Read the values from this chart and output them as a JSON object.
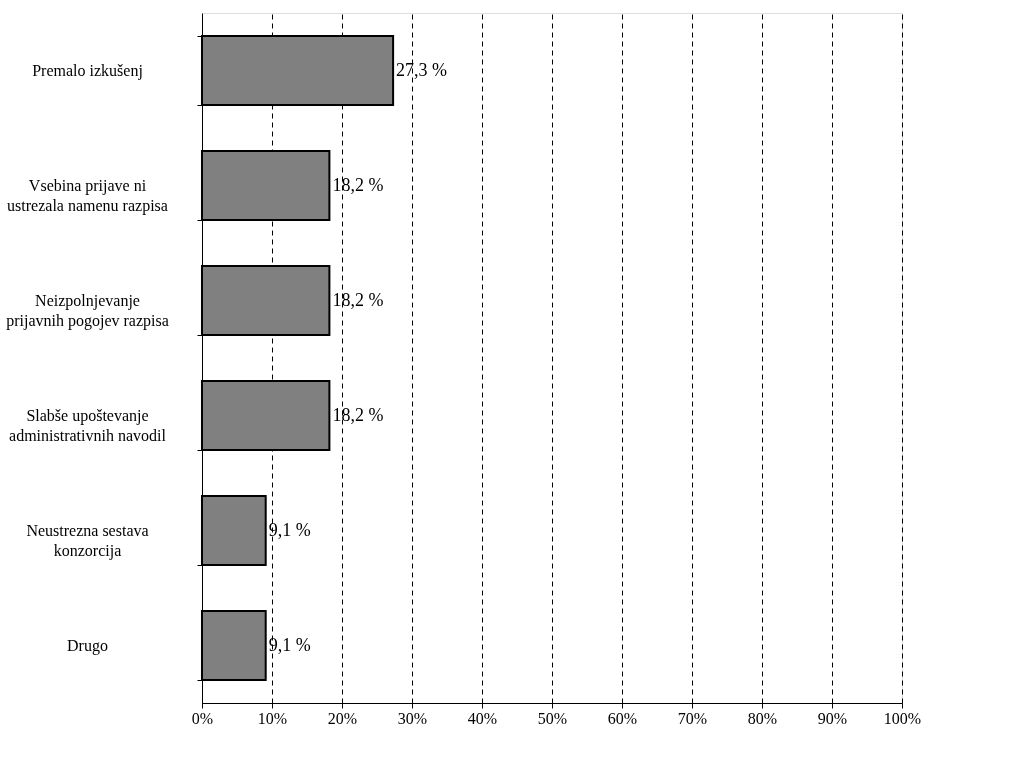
{
  "chart_data": {
    "type": "bar",
    "orientation": "horizontal",
    "categories": [
      "Premalo izkušenj",
      "Vsebina prijave ni\nustrezala namenu razpisa",
      "Neizpolnjevanje\nprijavnih pogojev razpisa",
      "Slabše upoštevanje\nadministrativnih navodil",
      "Neustrezna sestava\nkonzorcija",
      "Drugo"
    ],
    "values": [
      27.3,
      18.2,
      18.2,
      18.2,
      9.1,
      9.1
    ],
    "value_labels": [
      "27,3 %",
      "18,2 %",
      "18,2 %",
      "18,2 %",
      "9,1 %",
      "9,1 %"
    ],
    "color": "#808080",
    "xlim": [
      0,
      100
    ],
    "xticks": [
      {
        "value": 0,
        "label": "0%"
      },
      {
        "value": 10,
        "label": "10%"
      },
      {
        "value": 20,
        "label": "20%"
      },
      {
        "value": 30,
        "label": "30%"
      },
      {
        "value": 40,
        "label": "40%"
      },
      {
        "value": 50,
        "label": "50%"
      },
      {
        "value": 60,
        "label": "60%"
      },
      {
        "value": 70,
        "label": "70%"
      },
      {
        "value": 80,
        "label": "80%"
      },
      {
        "value": 90,
        "label": "90%"
      },
      {
        "value": 100,
        "label": "100%"
      }
    ],
    "grid": "x",
    "line_style": "dashed"
  }
}
